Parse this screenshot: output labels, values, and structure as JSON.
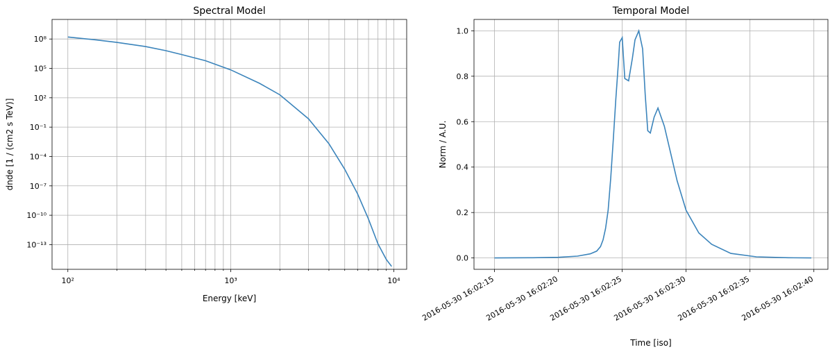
{
  "chart_data": [
    {
      "type": "line",
      "title": "Spectral Model",
      "xlabel": "Energy [keV]",
      "ylabel": "dnde [1 / (cm2 s TeV)]",
      "xscale": "log",
      "yscale": "log",
      "xlim": [
        80,
        12000
      ],
      "ylim": [
        3e-16,
        10000000000.0
      ],
      "grid": "both, major and minor on x",
      "color": "#3b84bb",
      "xticks": [
        {
          "value": 100,
          "label": "10²"
        },
        {
          "value": 1000,
          "label": "10³"
        },
        {
          "value": 10000,
          "label": "10⁴"
        }
      ],
      "yticks": [
        {
          "value": 1e-13,
          "label": "10⁻¹³"
        },
        {
          "value": 1e-10,
          "label": "10⁻¹⁰"
        },
        {
          "value": 1e-07,
          "label": "10⁻⁷"
        },
        {
          "value": 0.0001,
          "label": "10⁻⁴"
        },
        {
          "value": 0.1,
          "label": "10⁻¹"
        },
        {
          "value": 100,
          "label": "10²"
        },
        {
          "value": 100000,
          "label": "10⁵"
        },
        {
          "value": 100000000,
          "label": "10⁸"
        }
      ],
      "series": [
        {
          "x": [
            100,
            150,
            200,
            300,
            400,
            500,
            700,
            1000,
            1500,
            2000,
            3000,
            4000,
            5000,
            6000,
            7000,
            8000,
            9000,
            9700
          ],
          "y": [
            160000000.0,
            80000000.0,
            45000000.0,
            17000000.0,
            6500000.0,
            2600000.0,
            600000.0,
            70000.0,
            3000.0,
            200.0,
            0.7,
            0.002,
            5e-06,
            1.5e-08,
            4e-11,
            1.2e-13,
            3e-15,
            6e-16
          ]
        }
      ]
    },
    {
      "type": "line",
      "title": "Temporal Model",
      "xlabel": "Time [iso]",
      "ylabel": "Norm / A.U.",
      "x_axis": "date",
      "xlim": [
        "2016-05-30 16:02:13.4",
        "2016-05-30 16:02:41.1"
      ],
      "ylim": [
        -0.05,
        1.05
      ],
      "grid": "both",
      "color": "#3b84bb",
      "xticks": [
        {
          "value": "2016-05-30 16:02:15",
          "label": "2016-05-30 16:02:15"
        },
        {
          "value": "2016-05-30 16:02:20",
          "label": "2016-05-30 16:02:20"
        },
        {
          "value": "2016-05-30 16:02:25",
          "label": "2016-05-30 16:02:25"
        },
        {
          "value": "2016-05-30 16:02:30",
          "label": "2016-05-30 16:02:30"
        },
        {
          "value": "2016-05-30 16:02:35",
          "label": "2016-05-30 16:02:35"
        },
        {
          "value": "2016-05-30 16:02:40",
          "label": "2016-05-30 16:02:40"
        }
      ],
      "yticks": [
        {
          "value": 0.0,
          "label": "0.0"
        },
        {
          "value": 0.2,
          "label": "0.2"
        },
        {
          "value": 0.4,
          "label": "0.4"
        },
        {
          "value": 0.6,
          "label": "0.6"
        },
        {
          "value": 0.8,
          "label": "0.8"
        },
        {
          "value": 1.0,
          "label": "1.0"
        }
      ],
      "series": [
        {
          "x": [
            "2016-05-30 16:02:15.0",
            "2016-05-30 16:02:18.0",
            "2016-05-30 16:02:20.0",
            "2016-05-30 16:02:21.5",
            "2016-05-30 16:02:22.5",
            "2016-05-30 16:02:23.0",
            "2016-05-30 16:02:23.3",
            "2016-05-30 16:02:23.5",
            "2016-05-30 16:02:23.7",
            "2016-05-30 16:02:23.9",
            "2016-05-30 16:02:24.1",
            "2016-05-30 16:02:24.3",
            "2016-05-30 16:02:24.5",
            "2016-05-30 16:02:24.7",
            "2016-05-30 16:02:24.8",
            "2016-05-30 16:02:25.0",
            "2016-05-30 16:02:25.2",
            "2016-05-30 16:02:25.5",
            "2016-05-30 16:02:25.8",
            "2016-05-30 16:02:26.0",
            "2016-05-30 16:02:26.3",
            "2016-05-30 16:02:26.6",
            "2016-05-30 16:02:26.8",
            "2016-05-30 16:02:27.0",
            "2016-05-30 16:02:27.2",
            "2016-05-30 16:02:27.5",
            "2016-05-30 16:02:27.8",
            "2016-05-30 16:02:28.3",
            "2016-05-30 16:02:28.8",
            "2016-05-30 16:02:29.3",
            "2016-05-30 16:02:30.0",
            "2016-05-30 16:02:31.0",
            "2016-05-30 16:02:32.0",
            "2016-05-30 16:02:33.5",
            "2016-05-30 16:02:35.5",
            "2016-05-30 16:02:38.0",
            "2016-05-30 16:02:39.8"
          ],
          "y": [
            0.0,
            0.001,
            0.003,
            0.008,
            0.018,
            0.03,
            0.05,
            0.08,
            0.13,
            0.21,
            0.35,
            0.52,
            0.7,
            0.86,
            0.95,
            0.97,
            0.79,
            0.78,
            0.88,
            0.96,
            1.0,
            0.92,
            0.72,
            0.56,
            0.55,
            0.62,
            0.66,
            0.58,
            0.46,
            0.34,
            0.21,
            0.11,
            0.06,
            0.02,
            0.005,
            0.001,
            0.0
          ]
        }
      ]
    }
  ]
}
